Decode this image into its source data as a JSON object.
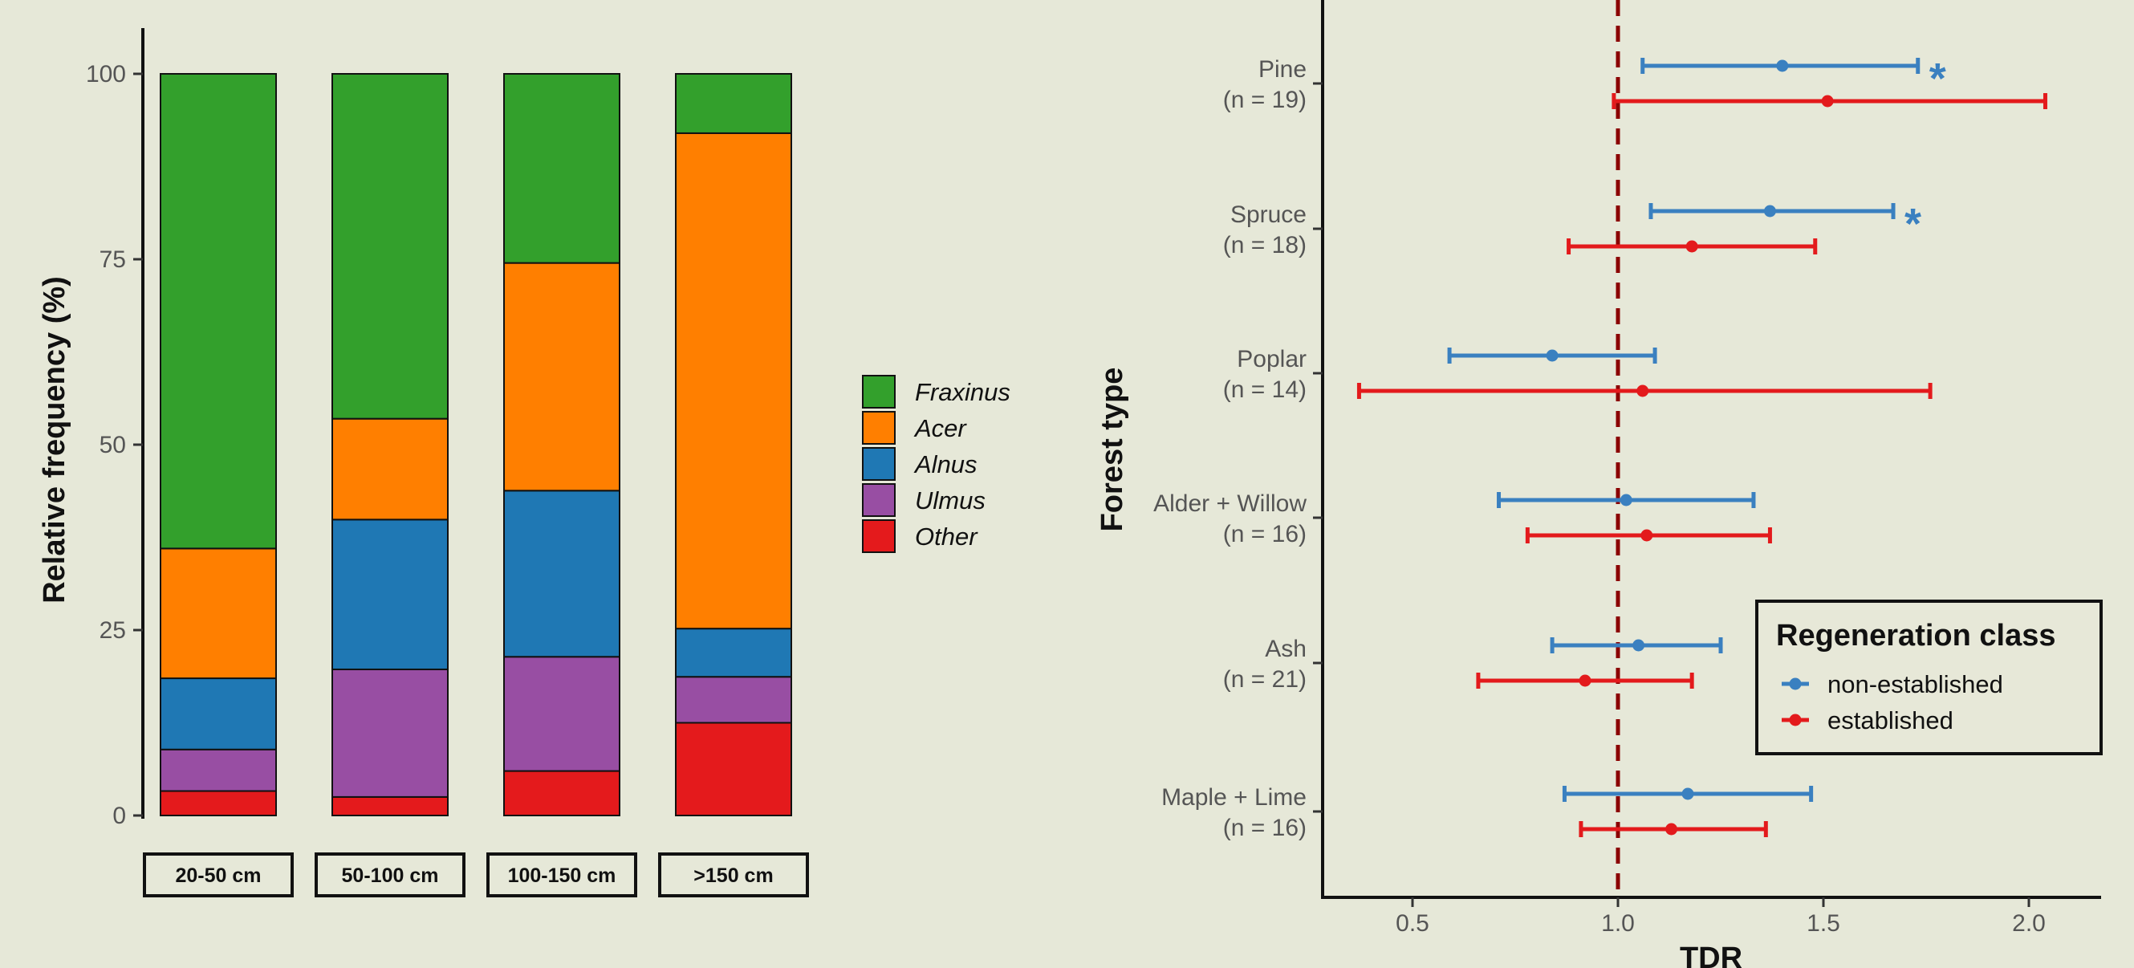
{
  "colors": {
    "background": "#e6e8d8",
    "Fraxinus": "#33a02c",
    "Acer": "#ff7f00",
    "Alnus": "#1f78b4",
    "Ulmus": "#984ea3",
    "Other": "#e41a1c",
    "non_established": "#3a80c0",
    "established": "#e31a1c",
    "reference_line": "#8b0000"
  },
  "chart_data": [
    {
      "type": "bar",
      "stacked": true,
      "ylabel": "Relative frequency (%)",
      "xlabel": "",
      "ylim": [
        0,
        100
      ],
      "yticks": [
        0,
        25,
        50,
        75,
        100
      ],
      "categories": [
        "20-50 cm",
        "50-100 cm",
        "100-150 cm",
        ">150 cm"
      ],
      "series": [
        {
          "name": "Other",
          "values": [
            3.3,
            2.5,
            6.0,
            12.5
          ]
        },
        {
          "name": "Ulmus",
          "values": [
            5.6,
            17.2,
            15.4,
            6.2
          ]
        },
        {
          "name": "Alnus",
          "values": [
            9.6,
            20.2,
            22.4,
            6.5
          ]
        },
        {
          "name": "Acer",
          "values": [
            17.5,
            13.6,
            30.7,
            66.8
          ]
        },
        {
          "name": "Fraxinus",
          "values": [
            64.0,
            46.5,
            25.5,
            8.0
          ]
        }
      ],
      "legend": {
        "placement": "right",
        "order": [
          "Fraxinus",
          "Acer",
          "Alnus",
          "Ulmus",
          "Other"
        ],
        "italic": true
      },
      "grid": false
    },
    {
      "type": "scatter",
      "subtype": "point-range",
      "xlabel": "TDR",
      "ylabel": "Forest type",
      "xlim": [
        0.28,
        2.17
      ],
      "xticks": [
        "0.5",
        "1.0",
        "1.5",
        "2.0"
      ],
      "reference_x": 1.0,
      "categories": [
        {
          "name": "Pine",
          "n": "(n = 19)"
        },
        {
          "name": "Spruce",
          "n": "(n = 18)"
        },
        {
          "name": "Poplar",
          "n": "(n = 14)"
        },
        {
          "name": "Alder + Willow",
          "n": "(n = 16)"
        },
        {
          "name": "Ash",
          "n": "(n = 21)"
        },
        {
          "name": "Maple + Lime",
          "n": "(n = 16)"
        }
      ],
      "series": [
        {
          "name": "non-established",
          "points": [
            {
              "est": 1.4,
              "lo": 1.06,
              "hi": 1.73,
              "sig": "*"
            },
            {
              "est": 1.37,
              "lo": 1.08,
              "hi": 1.67,
              "sig": "*"
            },
            {
              "est": 0.84,
              "lo": 0.59,
              "hi": 1.09,
              "sig": ""
            },
            {
              "est": 1.02,
              "lo": 0.71,
              "hi": 1.33,
              "sig": ""
            },
            {
              "est": 1.05,
              "lo": 0.84,
              "hi": 1.25,
              "sig": ""
            },
            {
              "est": 1.17,
              "lo": 0.87,
              "hi": 1.47,
              "sig": ""
            }
          ]
        },
        {
          "name": "established",
          "points": [
            {
              "est": 1.51,
              "lo": 0.99,
              "hi": 2.04,
              "sig": ""
            },
            {
              "est": 1.18,
              "lo": 0.88,
              "hi": 1.48,
              "sig": ""
            },
            {
              "est": 1.06,
              "lo": 0.37,
              "hi": 1.76,
              "sig": ""
            },
            {
              "est": 1.07,
              "lo": 0.78,
              "hi": 1.37,
              "sig": ""
            },
            {
              "est": 0.92,
              "lo": 0.66,
              "hi": 1.18,
              "sig": ""
            },
            {
              "est": 1.13,
              "lo": 0.91,
              "hi": 1.36,
              "sig": ""
            }
          ]
        }
      ],
      "legend": {
        "title": "Regeneration class",
        "placement": "bottom-right"
      },
      "grid": false
    }
  ]
}
